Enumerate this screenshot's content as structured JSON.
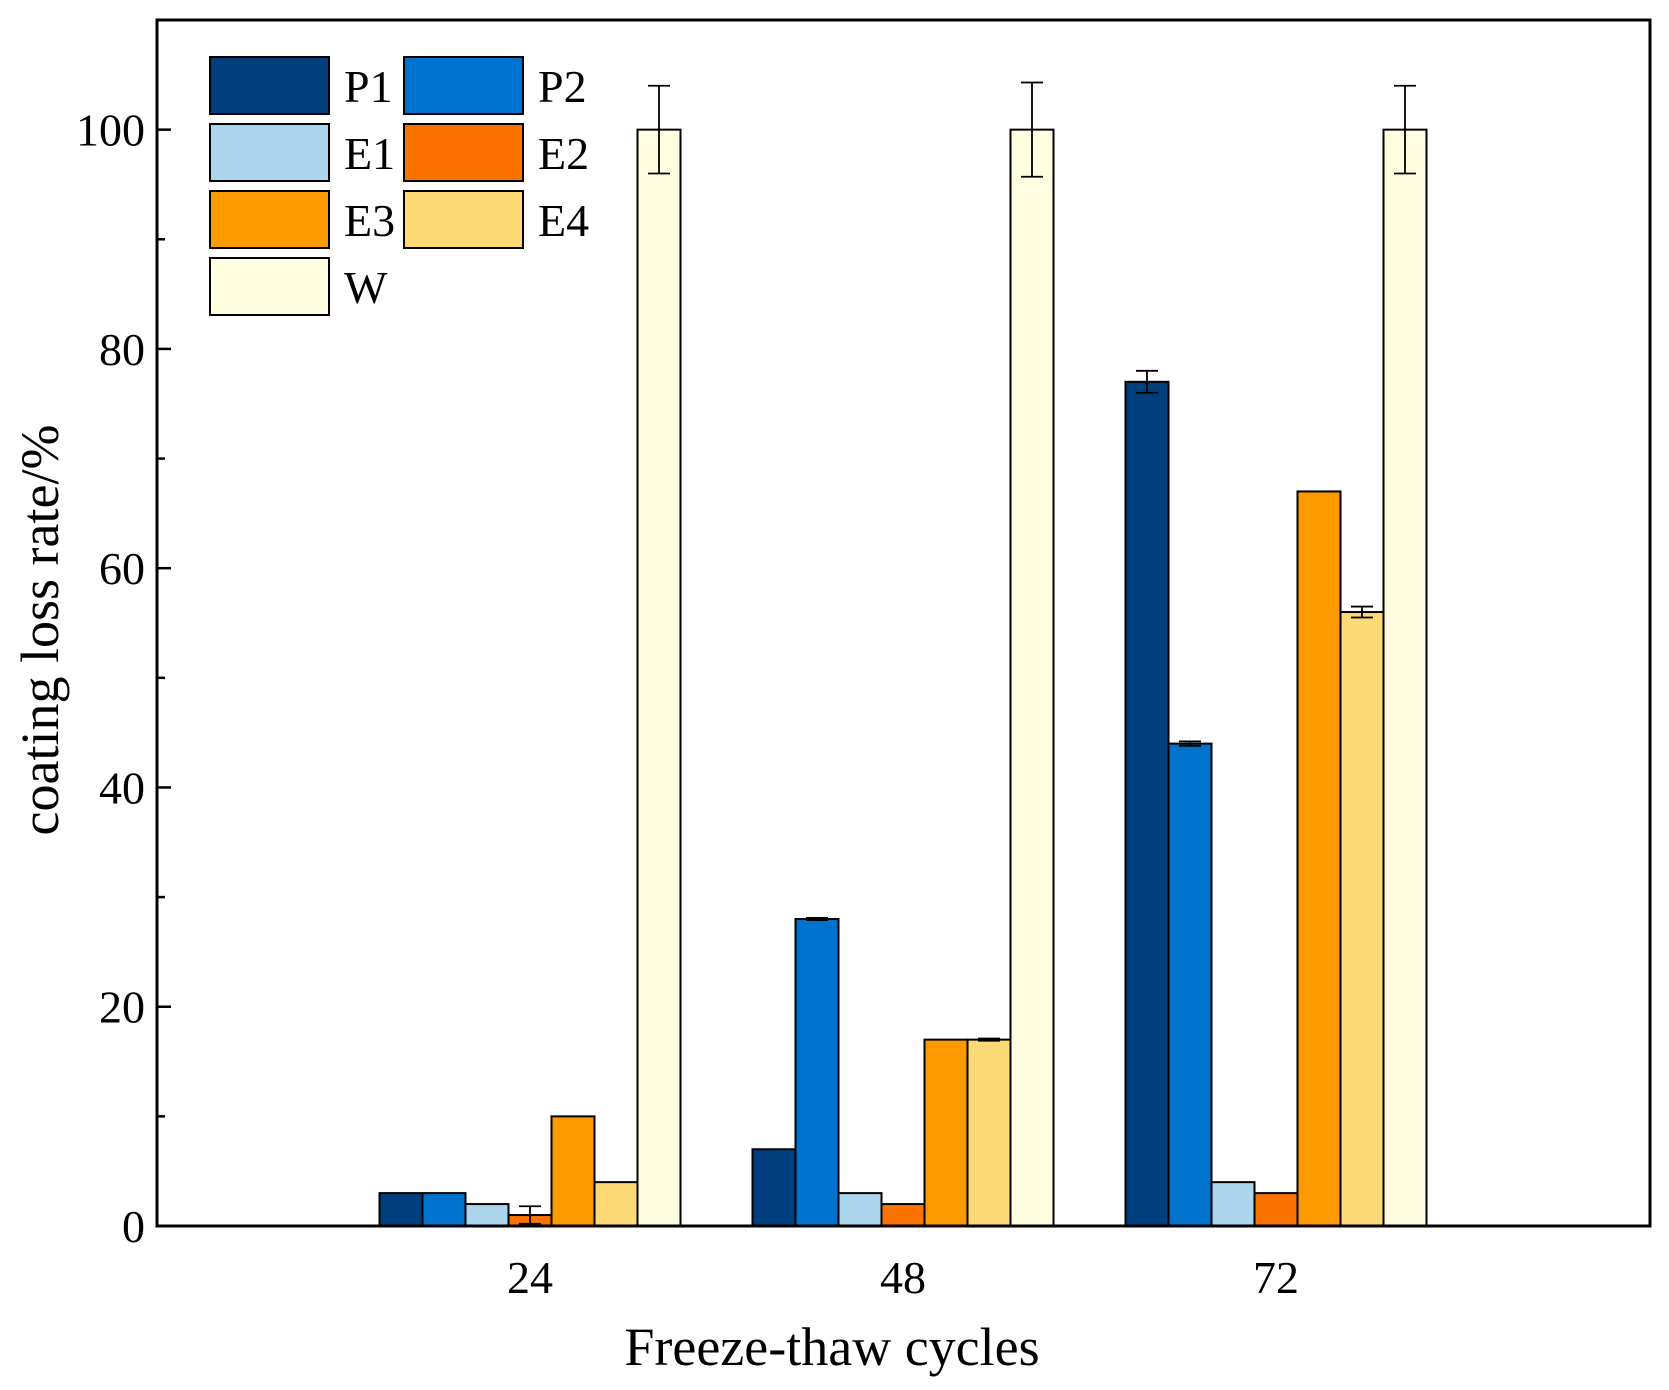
{
  "chart_data": {
    "type": "bar",
    "title": "",
    "xlabel": "Freeze-thaw cycles",
    "ylabel": "coating loss rate/%",
    "categories": [
      "24",
      "48",
      "72"
    ],
    "ylim": [
      0,
      110
    ],
    "yticks": [
      0,
      20,
      40,
      60,
      80,
      100
    ],
    "yticks_minor": [
      10,
      30,
      50,
      70,
      90
    ],
    "grid": false,
    "legend_position": "top-left",
    "series": [
      {
        "name": "P1",
        "color": "#003f7d",
        "values": [
          3,
          7,
          77
        ],
        "errors": [
          0,
          0,
          1.0
        ]
      },
      {
        "name": "P2",
        "color": "#0073cf",
        "values": [
          3,
          28,
          44
        ],
        "errors": [
          0,
          0.1,
          0.2
        ]
      },
      {
        "name": "E1",
        "color": "#abd6ee",
        "values": [
          2,
          3,
          4
        ],
        "errors": [
          0,
          0,
          0
        ]
      },
      {
        "name": "E2",
        "color": "#fb7200",
        "values": [
          1,
          2,
          3
        ],
        "errors": [
          0.8,
          0,
          0
        ]
      },
      {
        "name": "E3",
        "color": "#fd9a00",
        "values": [
          10,
          17,
          67
        ],
        "errors": [
          0,
          0,
          0
        ]
      },
      {
        "name": "E4",
        "color": "#fdda75",
        "values": [
          4,
          17,
          56
        ],
        "errors": [
          0,
          0.1,
          0.5
        ]
      },
      {
        "name": "W",
        "color": "#fffee1",
        "values": [
          100,
          100,
          100
        ],
        "errors": [
          4,
          4.3,
          4
        ]
      }
    ]
  }
}
